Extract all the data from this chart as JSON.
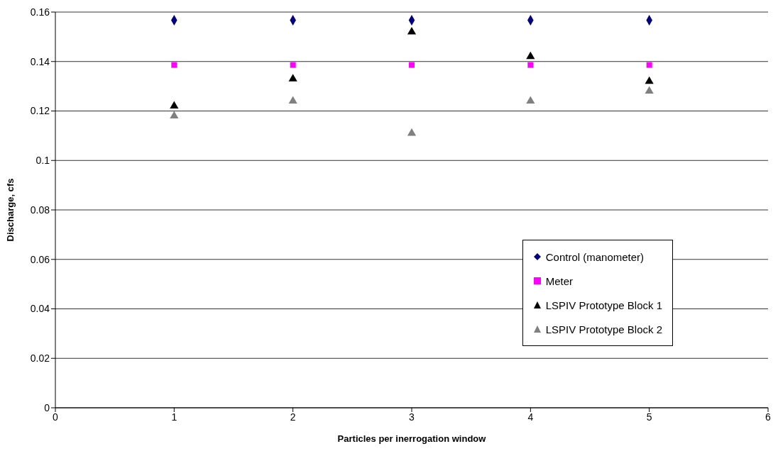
{
  "chart_data": {
    "type": "scatter",
    "xlabel": "Particles per inerrogation window",
    "ylabel": "Discharge, cfs",
    "x": [
      1,
      2,
      3,
      4,
      5
    ],
    "series": [
      {
        "name": "Control (manometer)",
        "color": "#000080",
        "marker": "diamond",
        "values": [
          0.1567,
          0.1567,
          0.1567,
          0.1567,
          0.1567
        ]
      },
      {
        "name": "Meter",
        "color": "#ff00ff",
        "marker": "square",
        "values": [
          0.1386,
          0.1386,
          0.1386,
          0.1386,
          0.1386
        ]
      },
      {
        "name": "LSPIV Prototype Block 1",
        "color": "#000000",
        "marker": "triangle",
        "values": [
          0.122,
          0.133,
          0.152,
          0.142,
          0.132
        ]
      },
      {
        "name": "LSPIV Prototype Block 2",
        "color": "#808080",
        "marker": "triangle",
        "values": [
          0.118,
          0.124,
          0.111,
          0.124,
          0.128
        ]
      }
    ],
    "xlim": [
      0,
      6
    ],
    "xticks": [
      0,
      1,
      2,
      3,
      4,
      5,
      6
    ],
    "ylim": [
      0,
      0.16
    ],
    "yticks": [
      0,
      0.02,
      0.04,
      0.06,
      0.08,
      0.1,
      0.12,
      0.14,
      0.16
    ],
    "grid": "y",
    "legend": "right"
  }
}
